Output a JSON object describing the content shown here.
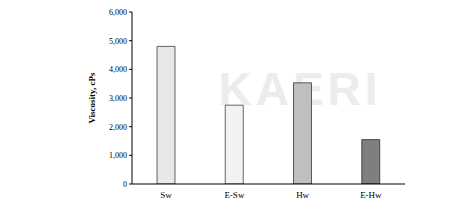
{
  "chart_data": {
    "type": "bar",
    "y_label": "Viscosity, cPs",
    "annotations": [
      "KAERI"
    ],
    "categories": [
      "Sw",
      "E-Sw",
      "Hw",
      "E-Hw"
    ],
    "values": [
      4800,
      2750,
      3530,
      1550
    ],
    "colors": [
      "#e8e8e8",
      "#f2f2f2",
      "#bfbfbf",
      "#7f7f7f"
    ],
    "ylim": [
      0,
      6000
    ],
    "yticks": [
      0,
      {
        "value": 1000,
        "label": "1,000"
      },
      {
        "value": 2000,
        "label": "2,000"
      },
      {
        "value": 3000,
        "label": "3,000"
      },
      {
        "value": 4000,
        "label": "4,000"
      },
      {
        "value": 5000,
        "label": "5,000"
      },
      {
        "value": 6000,
        "label": "6,000"
      }
    ],
    "grid": false
  }
}
